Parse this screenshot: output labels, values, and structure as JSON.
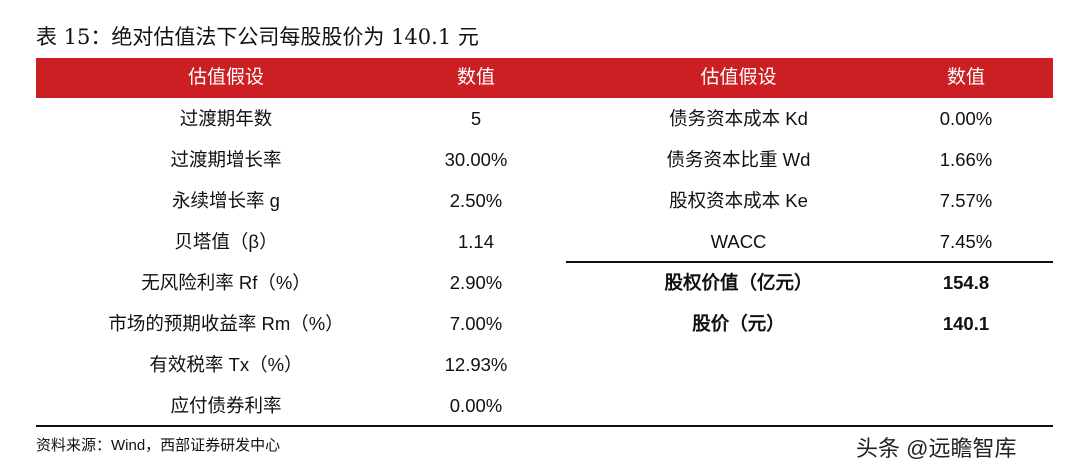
{
  "title": "表 15：绝对估值法下公司每股股价为 140.1 元",
  "headers": {
    "left_assumption": "估值假设",
    "left_value": "数值",
    "right_assumption": "估值假设",
    "right_value": "数值"
  },
  "left_rows": [
    {
      "label": "过渡期年数",
      "value": "5"
    },
    {
      "label": "过渡期增长率",
      "value": "30.00%"
    },
    {
      "label": "永续增长率 g",
      "value": "2.50%"
    },
    {
      "label": "贝塔值（β）",
      "value": "1.14"
    },
    {
      "label": "无风险利率 Rf（%）",
      "value": "2.90%"
    },
    {
      "label": "市场的预期收益率 Rm（%）",
      "value": "7.00%"
    },
    {
      "label": "有效税率 Tx（%）",
      "value": "12.93%"
    },
    {
      "label": "应付债券利率",
      "value": "0.00%"
    }
  ],
  "right_rows": [
    {
      "label": "债务资本成本 Kd",
      "value": "0.00%"
    },
    {
      "label": "债务资本比重 Wd",
      "value": "1.66%"
    },
    {
      "label": "股权资本成本 Ke",
      "value": "7.57%"
    },
    {
      "label": "WACC",
      "value": "7.45%"
    }
  ],
  "right_results": [
    {
      "label": "股权价值（亿元）",
      "value": "154.8"
    },
    {
      "label": "股价（元）",
      "value": "140.1"
    }
  ],
  "source": "资料来源：Wind，西部证券研发中心",
  "watermark": "头条 @远瞻智库",
  "colors": {
    "header_bg": "#cc1f24",
    "header_text": "#ffffff"
  }
}
